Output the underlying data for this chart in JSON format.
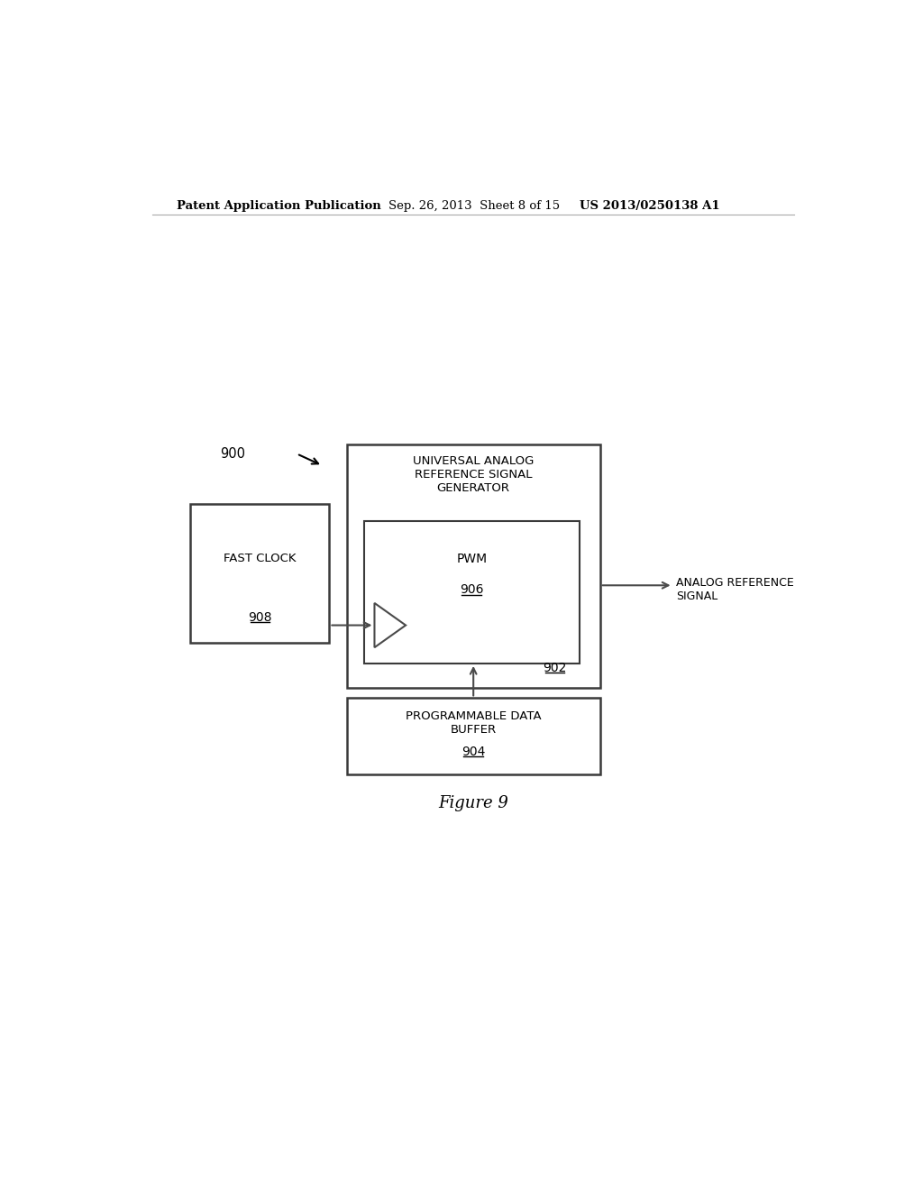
{
  "bg_color": "#ffffff",
  "text_color": "#000000",
  "header_left": "Patent Application Publication",
  "header_center": "Sep. 26, 2013  Sheet 8 of 15",
  "header_right": "US 2013/0250138 A1",
  "figure_label": "Figure 9",
  "label_900": "900",
  "label_902": "902",
  "label_904": "904",
  "label_906": "906",
  "label_908": "908",
  "fast_clock_text": "FAST CLOCK",
  "pwm_text": "PWM",
  "universal_text": "UNIVERSAL ANALOG\nREFERENCE SIGNAL\nGENERATOR",
  "prog_data_text": "PROGRAMMABLE DATA\nBUFFER",
  "analog_ref_text": "ANALOG REFERENCE\nSIGNAL",
  "line_color": "#4a4a4a",
  "box_line_color": "#3a3a3a"
}
